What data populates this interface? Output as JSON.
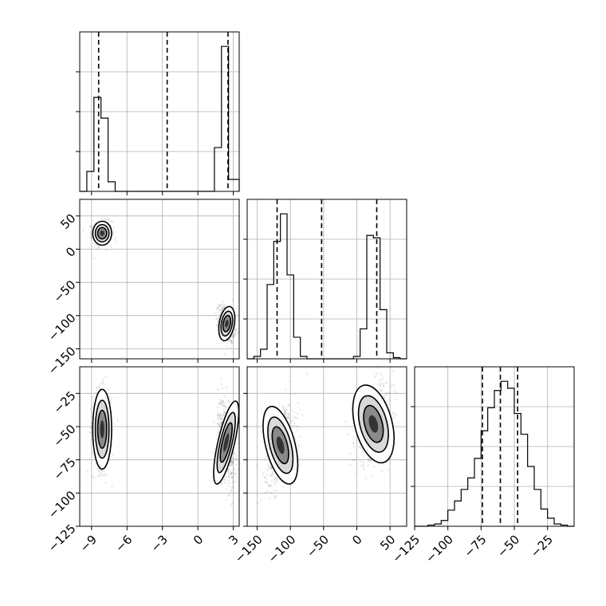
{
  "chart_data": {
    "type": "corner",
    "parameters": [
      "p0",
      "p1",
      "p2"
    ],
    "ranges": {
      "p0": [
        -10.0,
        3.5
      ],
      "p1": [
        -165,
        75
      ],
      "p2": [
        -125,
        -5
      ]
    },
    "ticks": {
      "p0": [
        -9,
        -6,
        -3,
        0,
        3
      ],
      "p1": [
        -150,
        -100,
        -50,
        0,
        50
      ],
      "p2": [
        -125,
        -100,
        -75,
        -50,
        -25
      ]
    },
    "tick_labels": {
      "p0": [
        "−9",
        "−6",
        "−3",
        "0",
        "3"
      ],
      "p1": [
        "−150",
        "−100",
        "−50",
        "0",
        "50"
      ],
      "p2": [
        "−125",
        "−100",
        "−75",
        "−50",
        "−25"
      ]
    },
    "quantiles": {
      "p0": [
        -8.4,
        -2.6,
        2.55
      ],
      "p1": [
        -120,
        -53,
        30
      ],
      "p2": [
        -74,
        -60.5,
        -47.5
      ]
    },
    "histograms": {
      "p0": {
        "edges": [
          -10.0,
          -9.4,
          -8.8,
          -8.2,
          -7.6,
          -7.0,
          -6.4,
          1.4,
          2.0,
          2.6,
          3.5
        ],
        "counts": [
          0,
          25,
          118,
          92,
          12,
          0,
          0,
          55,
          182,
          15
        ]
      },
      "p1": {
        "edges": [
          -165,
          -155,
          -145,
          -135,
          -125,
          -115,
          -105,
          -95,
          -85,
          -75,
          -65,
          -5,
          5,
          15,
          25,
          35,
          45,
          55,
          65,
          75
        ],
        "counts": [
          0,
          2,
          8,
          62,
          98,
          121,
          70,
          18,
          2,
          0,
          0,
          2,
          25,
          103,
          101,
          41,
          5,
          1,
          0
        ]
      },
      "p2": {
        "edges": [
          -125,
          -120,
          -115,
          -110,
          -105,
          -100,
          -95,
          -90,
          -85,
          -80,
          -75,
          -70,
          -65,
          -60,
          -55,
          -50,
          -45,
          -40,
          -35,
          -30,
          -25,
          -20,
          -15,
          -10,
          -5
        ],
        "counts": [
          0,
          0,
          1,
          2,
          5,
          14,
          22,
          32,
          42,
          59,
          83,
          103,
          118,
          126,
          120,
          98,
          80,
          52,
          32,
          15,
          7,
          2,
          1,
          0
        ]
      }
    },
    "clusters": {
      "p0_p1": [
        {
          "mean": [
            -8.1,
            24
          ],
          "sd": [
            0.4,
            9
          ],
          "rho": 0.0,
          "n": 500
        },
        {
          "mean": [
            2.45,
            -112
          ],
          "sd": [
            0.32,
            13
          ],
          "rho": -0.3,
          "n": 500
        }
      ],
      "p0_p2": [
        {
          "mean": [
            -8.1,
            -52
          ],
          "sd": [
            0.4,
            15
          ],
          "rho": 0.0,
          "n": 500
        },
        {
          "mean": [
            2.4,
            -62
          ],
          "sd": [
            0.35,
            16
          ],
          "rho": -0.4,
          "n": 500
        }
      ],
      "p1_p2": [
        {
          "mean": [
            -115,
            -64
          ],
          "sd": [
            11,
            15
          ],
          "rho": 0.45,
          "n": 500
        },
        {
          "mean": [
            25,
            -48
          ],
          "sd": [
            14,
            15
          ],
          "rho": 0.45,
          "n": 500
        }
      ]
    },
    "grid": true
  }
}
